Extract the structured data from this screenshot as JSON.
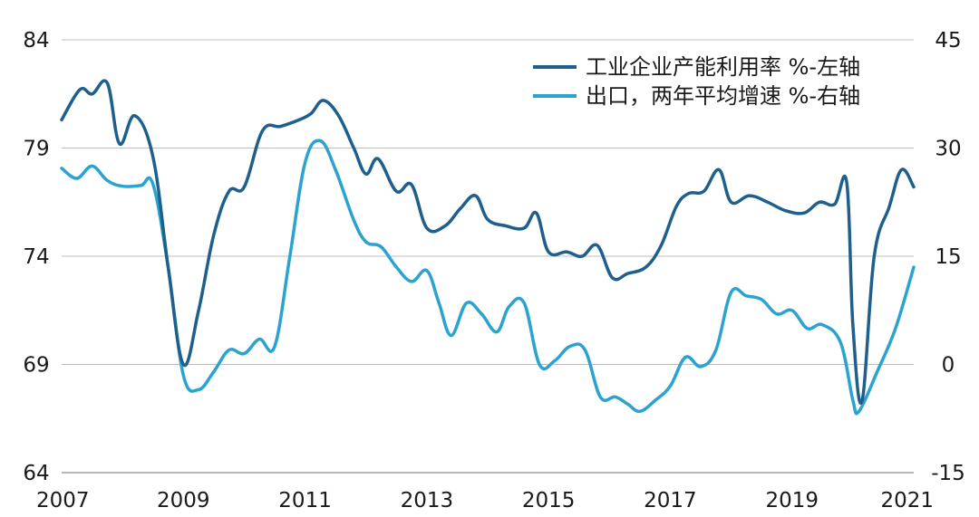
{
  "chart_data": {
    "type": "line",
    "title": "",
    "x_ticks": [
      "2007",
      "2009",
      "2011",
      "2013",
      "2015",
      "2017",
      "2019",
      "2021"
    ],
    "x_range": [
      2007.0,
      2021.0
    ],
    "y_left": {
      "ticks": [
        "64",
        "69",
        "74",
        "79",
        "84"
      ],
      "range": [
        64,
        84
      ]
    },
    "y_right": {
      "ticks": [
        "-15",
        "0",
        "15",
        "30",
        "45"
      ],
      "range": [
        -15,
        45
      ]
    },
    "grid": "horizontal",
    "legend_position": "top-right",
    "series": [
      {
        "name": "工业企业产能利用率 %-左轴",
        "axis": "left",
        "color": "#1f5f8b",
        "points": [
          [
            2007.0,
            80.3
          ],
          [
            2007.3,
            81.7
          ],
          [
            2007.5,
            81.5
          ],
          [
            2007.75,
            82.0
          ],
          [
            2007.95,
            79.2
          ],
          [
            2008.2,
            80.5
          ],
          [
            2008.5,
            78.6
          ],
          [
            2008.75,
            73.5
          ],
          [
            2009.0,
            69.0
          ],
          [
            2009.25,
            71.5
          ],
          [
            2009.5,
            75.0
          ],
          [
            2009.75,
            77.0
          ],
          [
            2010.0,
            77.2
          ],
          [
            2010.3,
            79.8
          ],
          [
            2010.6,
            80.0
          ],
          [
            2010.9,
            80.3
          ],
          [
            2011.1,
            80.6
          ],
          [
            2011.3,
            81.2
          ],
          [
            2011.55,
            80.5
          ],
          [
            2011.8,
            79.0
          ],
          [
            2012.0,
            77.8
          ],
          [
            2012.2,
            78.5
          ],
          [
            2012.5,
            77.0
          ],
          [
            2012.75,
            77.3
          ],
          [
            2013.0,
            75.3
          ],
          [
            2013.3,
            75.4
          ],
          [
            2013.55,
            76.2
          ],
          [
            2013.8,
            76.8
          ],
          [
            2014.0,
            75.7
          ],
          [
            2014.3,
            75.4
          ],
          [
            2014.6,
            75.3
          ],
          [
            2014.8,
            76.0
          ],
          [
            2015.0,
            74.2
          ],
          [
            2015.3,
            74.2
          ],
          [
            2015.55,
            74.0
          ],
          [
            2015.8,
            74.5
          ],
          [
            2016.05,
            73.0
          ],
          [
            2016.3,
            73.2
          ],
          [
            2016.6,
            73.5
          ],
          [
            2016.85,
            74.5
          ],
          [
            2017.1,
            76.3
          ],
          [
            2017.3,
            76.9
          ],
          [
            2017.55,
            77.0
          ],
          [
            2017.8,
            78.0
          ],
          [
            2018.0,
            76.5
          ],
          [
            2018.3,
            76.8
          ],
          [
            2018.6,
            76.5
          ],
          [
            2018.9,
            76.1
          ],
          [
            2019.2,
            76.0
          ],
          [
            2019.45,
            76.5
          ],
          [
            2019.7,
            76.4
          ],
          [
            2019.9,
            77.4
          ],
          [
            2020.0,
            70.8
          ],
          [
            2020.15,
            67.3
          ],
          [
            2020.35,
            74.0
          ],
          [
            2020.6,
            76.3
          ],
          [
            2020.8,
            78.0
          ],
          [
            2021.0,
            77.2
          ]
        ]
      },
      {
        "name": "出口，两年平均增速 %-右轴",
        "axis": "right",
        "color": "#2aa3d1",
        "points": [
          [
            2007.0,
            27.2
          ],
          [
            2007.25,
            25.8
          ],
          [
            2007.5,
            27.5
          ],
          [
            2007.75,
            25.5
          ],
          [
            2008.0,
            24.7
          ],
          [
            2008.3,
            24.8
          ],
          [
            2008.5,
            25.0
          ],
          [
            2008.75,
            13.5
          ],
          [
            2009.0,
            -1.5
          ],
          [
            2009.25,
            -3.5
          ],
          [
            2009.5,
            -1.0
          ],
          [
            2009.75,
            2.0
          ],
          [
            2010.0,
            1.5
          ],
          [
            2010.25,
            3.5
          ],
          [
            2010.5,
            2.5
          ],
          [
            2010.75,
            15.0
          ],
          [
            2011.0,
            28.0
          ],
          [
            2011.25,
            31.0
          ],
          [
            2011.5,
            27.0
          ],
          [
            2011.8,
            20.0
          ],
          [
            2012.0,
            17.0
          ],
          [
            2012.25,
            16.3
          ],
          [
            2012.5,
            13.5
          ],
          [
            2012.75,
            11.5
          ],
          [
            2013.0,
            13.0
          ],
          [
            2013.2,
            8.5
          ],
          [
            2013.4,
            4.0
          ],
          [
            2013.65,
            8.5
          ],
          [
            2013.9,
            7.0
          ],
          [
            2014.15,
            4.5
          ],
          [
            2014.35,
            8.0
          ],
          [
            2014.6,
            8.5
          ],
          [
            2014.85,
            0.0
          ],
          [
            2015.1,
            0.5
          ],
          [
            2015.35,
            2.5
          ],
          [
            2015.6,
            2.0
          ],
          [
            2015.85,
            -4.5
          ],
          [
            2016.1,
            -4.5
          ],
          [
            2016.3,
            -5.5
          ],
          [
            2016.5,
            -6.5
          ],
          [
            2016.75,
            -5.0
          ],
          [
            2017.0,
            -3.0
          ],
          [
            2017.25,
            1.0
          ],
          [
            2017.5,
            -0.3
          ],
          [
            2017.75,
            2.0
          ],
          [
            2018.0,
            10.0
          ],
          [
            2018.25,
            9.5
          ],
          [
            2018.5,
            9.0
          ],
          [
            2018.75,
            7.0
          ],
          [
            2019.0,
            7.5
          ],
          [
            2019.25,
            5.0
          ],
          [
            2019.5,
            5.5
          ],
          [
            2019.8,
            3.0
          ],
          [
            2020.0,
            -5.0
          ],
          [
            2020.1,
            -6.5
          ],
          [
            2020.4,
            -1.0
          ],
          [
            2020.7,
            5.0
          ],
          [
            2021.0,
            13.5
          ]
        ]
      }
    ]
  }
}
